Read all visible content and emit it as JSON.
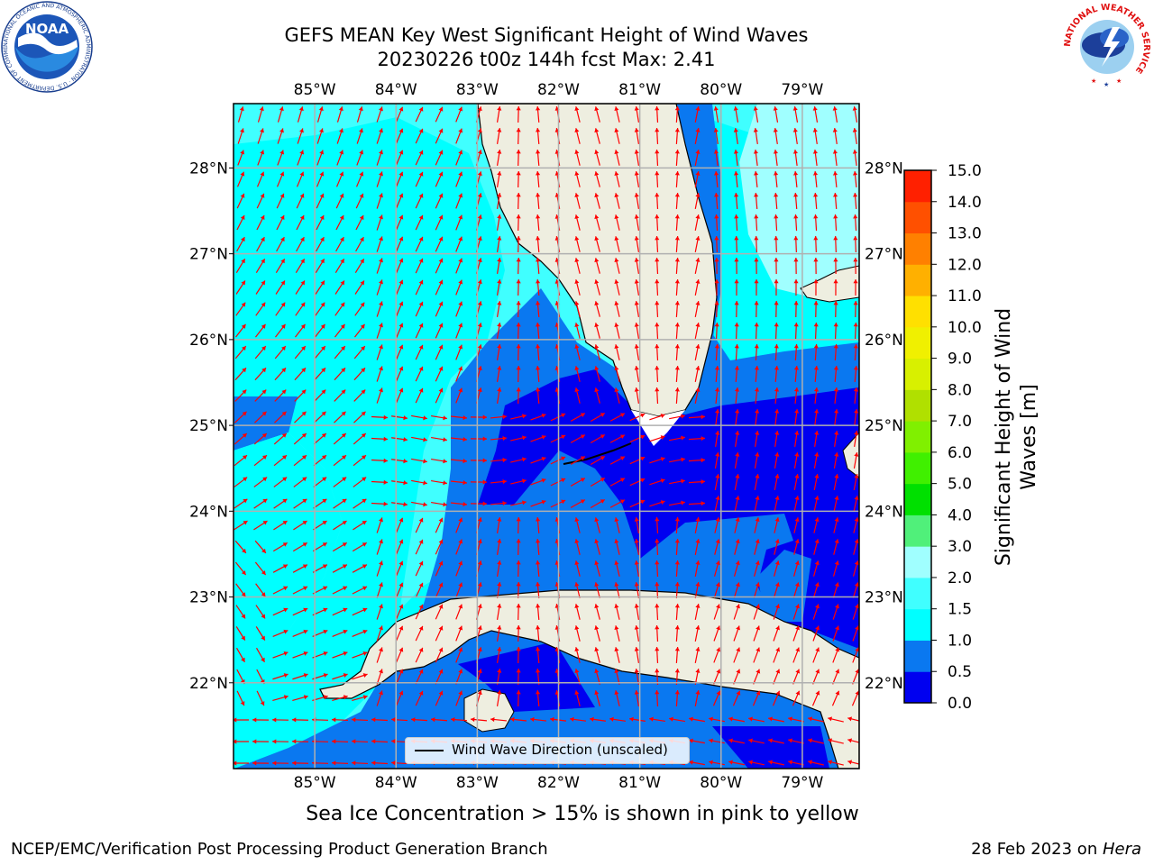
{
  "header": {
    "title_line1": "GEFS MEAN Key West Significant Height of Wind Waves",
    "title_line2": "20230226 t00z 144h fcst   Max: 2.41"
  },
  "logos": {
    "noaa_text": "NOAA",
    "noaa_ring_text": "NATIONAL OCEANIC AND ATMOSPHERIC ADMINISTRATION · U.S. DEPARTMENT OF COMMERCE",
    "nws_ring_text": "NATIONAL WEATHER SERVICE"
  },
  "map": {
    "lon_labels": [
      "85°W",
      "84°W",
      "83°W",
      "82°W",
      "81°W",
      "80°W",
      "79°W"
    ],
    "lon_values": [
      -85,
      -84,
      -83,
      -82,
      -81,
      -80,
      -79
    ],
    "lat_labels": [
      "28°N",
      "27°N",
      "26°N",
      "25°N",
      "24°N",
      "23°N",
      "22°N"
    ],
    "lat_values": [
      28,
      27,
      26,
      25,
      24,
      23,
      22
    ],
    "extent": {
      "lon_min": -86.0,
      "lon_max": -78.3,
      "lat_min": 21.0,
      "lat_max": 28.75
    },
    "arrow_color": "#ff0000",
    "land_color": "#eeeee0",
    "legend_label": "Wind Wave Direction (unscaled)"
  },
  "colorbar": {
    "label": "Significant Height of Wind Waves [m]",
    "tick_labels": [
      "0.0",
      "0.5",
      "1.0",
      "1.5",
      "2.0",
      "3.0",
      "4.0",
      "5.0",
      "6.0",
      "7.0",
      "8.0",
      "9.0",
      "10.0",
      "11.0",
      "12.0",
      "13.0",
      "14.0",
      "15.0"
    ],
    "colors": [
      "#0000f0",
      "#0a78f0",
      "#00ffff",
      "#40ffff",
      "#a0ffff",
      "#50f07a",
      "#00e000",
      "#40f000",
      "#80f000",
      "#b0e000",
      "#d8f000",
      "#f0f000",
      "#ffe000",
      "#ffb000",
      "#ff8000",
      "#ff5000",
      "#ff2000"
    ]
  },
  "footer": {
    "sea_ice_note": "Sea Ice Concentration > 15% is shown in pink to yellow",
    "credit_left": "NCEP/EMC/Verification Post Processing Product Generation Branch",
    "credit_date": "28 Feb 2023 on ",
    "credit_host": "Hera"
  }
}
